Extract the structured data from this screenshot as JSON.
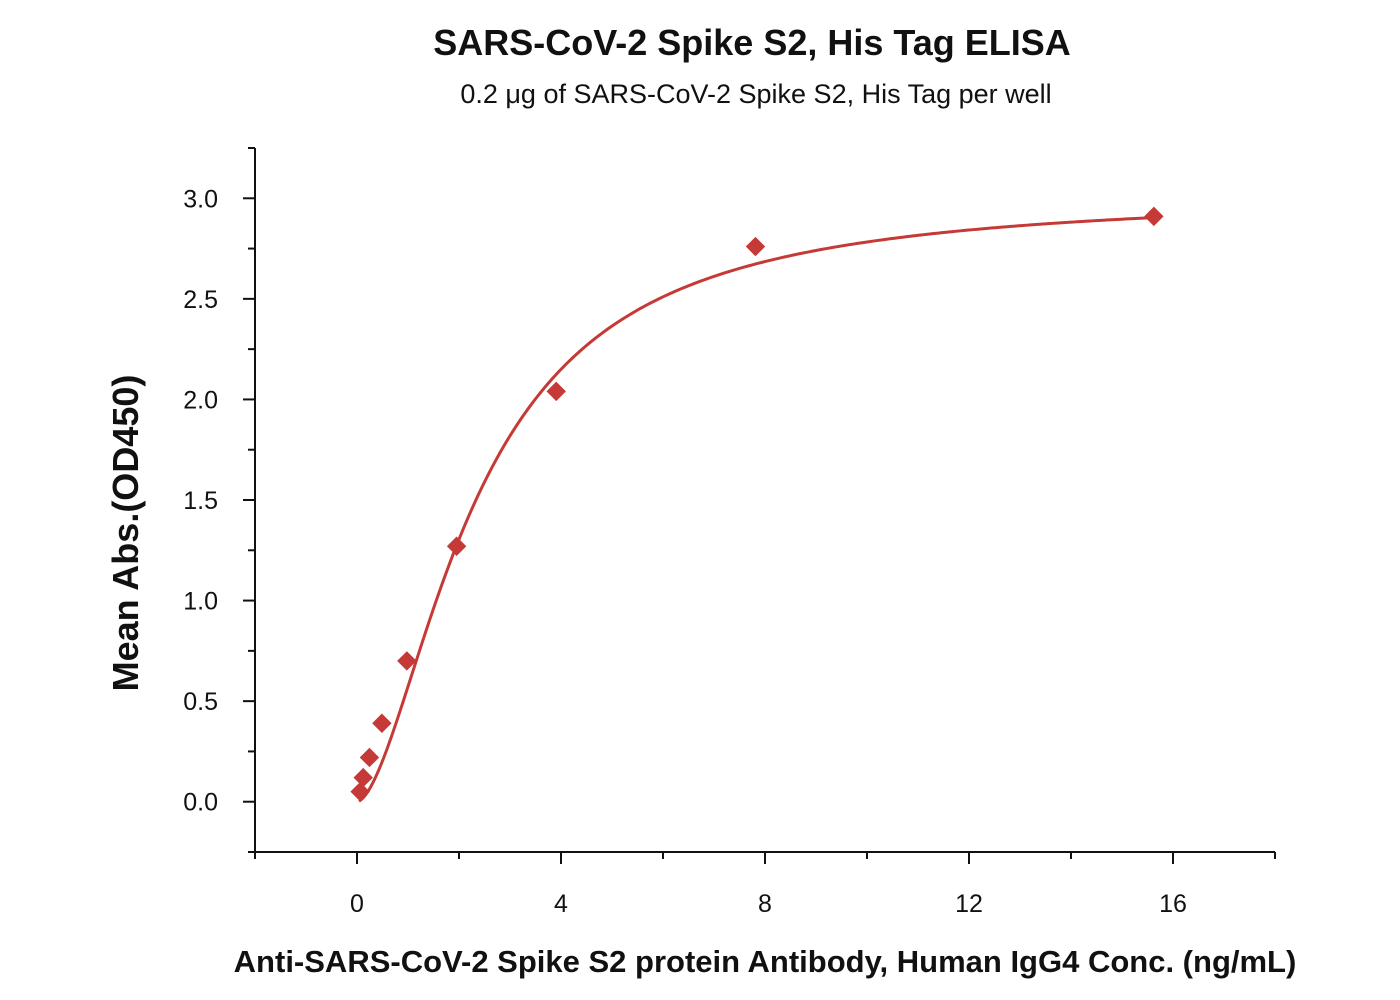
{
  "chart_data": {
    "type": "scatter",
    "title": "SARS-CoV-2 Spike S2, His Tag ELISA",
    "subtitle": "0.2 μg of SARS-CoV-2 Spike S2, His Tag per well",
    "xlabel": "Anti-SARS-CoV-2 Spike S2 protein Antibody, Human IgG4 Conc. (ng/mL)",
    "ylabel": "Mean Abs.(OD450)",
    "xlim": [
      -2,
      18
    ],
    "ylim": [
      -0.25,
      3.25
    ],
    "x_ticks": [
      0,
      4,
      8,
      12,
      16
    ],
    "x_tick_labels": [
      "0",
      "4",
      "8",
      "12",
      "16"
    ],
    "y_ticks": [
      0.0,
      0.5,
      1.0,
      1.5,
      2.0,
      2.5,
      3.0
    ],
    "y_tick_labels": [
      "0.0",
      "0.5",
      "1.0",
      "1.5",
      "2.0",
      "2.5",
      "3.0"
    ],
    "grid": false,
    "legend": "none",
    "marker": "diamond",
    "color": "#c53a36",
    "series": [
      {
        "x": [
          0.061,
          0.122,
          0.244,
          0.488,
          0.977,
          1.953,
          3.906,
          7.813,
          15.625
        ],
        "y": [
          0.05,
          0.12,
          0.22,
          0.39,
          0.7,
          1.27,
          2.04,
          2.76,
          2.91
        ]
      }
    ],
    "fit": {
      "type": "4PL",
      "a": 0.0,
      "b": 1.7,
      "c": 2.35,
      "d": 3.02
    }
  }
}
